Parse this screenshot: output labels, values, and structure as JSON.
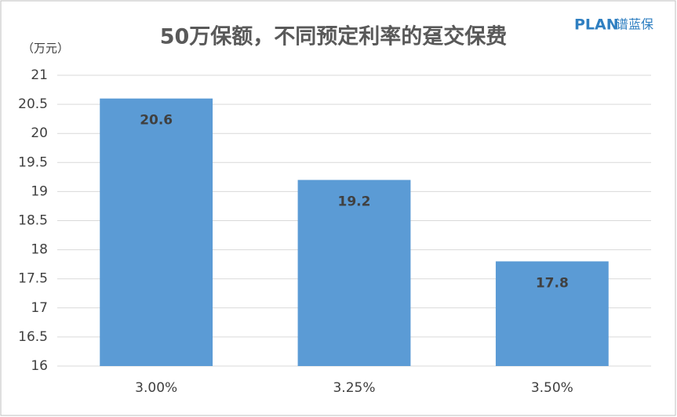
{
  "chart_data": {
    "type": "bar",
    "title": "50万保额，不同预定利率的趸交保费",
    "y_unit": "（万元）",
    "logo": {
      "brand": "PLAN",
      "name": "谱蓝保"
    },
    "categories": [
      "3.00%",
      "3.25%",
      "3.50%"
    ],
    "values": [
      20.6,
      19.2,
      17.8
    ],
    "color": "#5b9bd5",
    "ylim": [
      16,
      21
    ],
    "yticks": [
      16,
      16.5,
      17,
      17.5,
      18,
      18.5,
      19,
      19.5,
      20,
      20.5,
      21
    ],
    "grid": true
  }
}
